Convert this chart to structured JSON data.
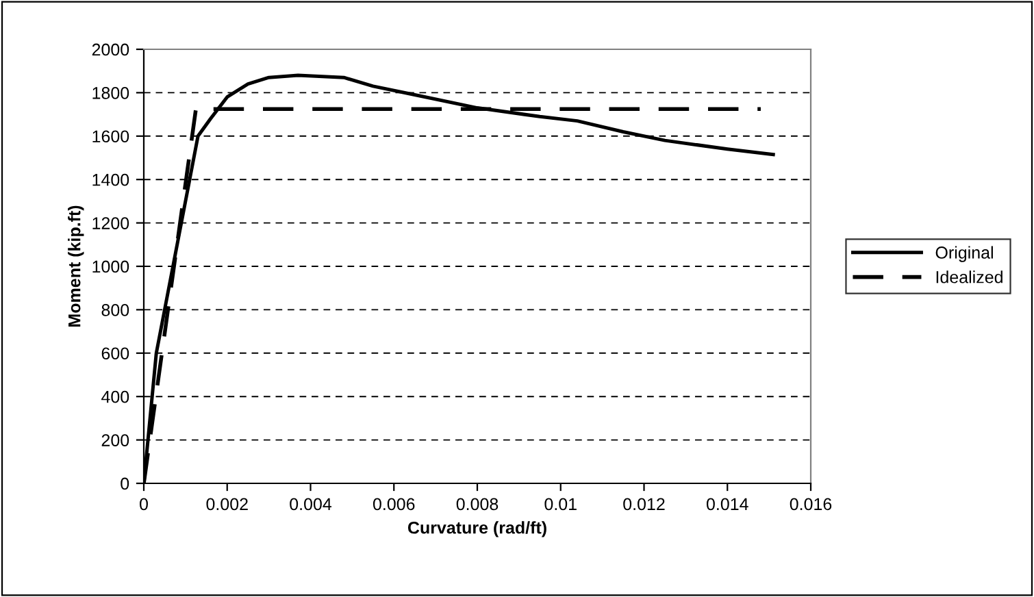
{
  "chart_data": {
    "type": "line",
    "xlabel": "Curvature (rad/ft)",
    "ylabel": "Moment (kip.ft)",
    "xlim": [
      0,
      0.016
    ],
    "xticks": [
      0,
      0.002,
      0.004,
      0.006,
      0.008,
      0.01,
      0.012,
      0.014,
      0.016
    ],
    "ylim": [
      0,
      2000
    ],
    "yticks": [
      0,
      200,
      400,
      600,
      800,
      1000,
      1200,
      1400,
      1600,
      1800,
      2000
    ],
    "grid": "y",
    "legend": "right",
    "marker": "none",
    "series": [
      {
        "name": "Original",
        "color": "#000000",
        "line_style": "solid",
        "x": [
          0,
          0.0002,
          0.0003,
          0.0005,
          0.0007,
          0.0009,
          0.0011,
          0.0013,
          0.0016,
          0.002,
          0.0025,
          0.003,
          0.0037,
          0.0048,
          0.0055,
          0.0065,
          0.008,
          0.0095,
          0.0104,
          0.0115,
          0.0125,
          0.014,
          0.0151
        ],
        "values": [
          0,
          400,
          600,
          800,
          1000,
          1200,
          1400,
          1600,
          1680,
          1780,
          1840,
          1870,
          1880,
          1870,
          1830,
          1790,
          1730,
          1690,
          1670,
          1620,
          1580,
          1540,
          1515
        ]
      },
      {
        "name": "Idealized",
        "color": "#000000",
        "line_style": "dashed",
        "x": [
          0,
          0.00125,
          0.0148
        ],
        "values": [
          0,
          1725,
          1725
        ]
      }
    ]
  }
}
